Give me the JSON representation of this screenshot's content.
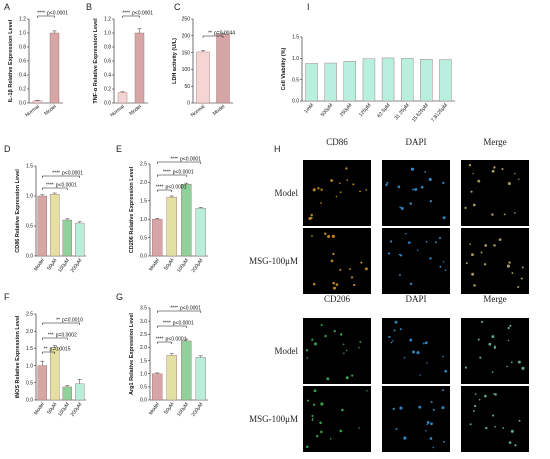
{
  "colors": {
    "pink": "#f5d5d4",
    "pinkStroke": "#c98b89",
    "rose": "#d6a5a6",
    "khaki": "#e2e1a3",
    "green": "#8fd19a",
    "mint": "#b9eedb",
    "viability": "#b9efde"
  },
  "chart_data": [
    {
      "id": "A",
      "type": "bar",
      "categories": [
        "Normal",
        "Model"
      ],
      "values": [
        0.03,
        1.0
      ],
      "errors": [
        0.01,
        0.03
      ],
      "ylim": [
        0,
        1.2
      ],
      "yticks": [
        "0.0",
        "0.2",
        "0.4",
        "0.6",
        "0.8",
        "1.0",
        "1.2"
      ],
      "ylabel": "IL-1β Relative Expression Level",
      "sig": [
        {
          "stars": "****",
          "p": "p<0.0001"
        }
      ]
    },
    {
      "id": "B",
      "type": "bar",
      "categories": [
        "Normal",
        "Model"
      ],
      "values": [
        0.15,
        1.0
      ],
      "errors": [
        0.01,
        0.06
      ],
      "ylim": [
        0,
        1.2
      ],
      "yticks": [
        "0.0",
        "0.2",
        "0.4",
        "0.6",
        "0.8",
        "1.0",
        "1.2"
      ],
      "ylabel": "TNF-α Relative Expression Level",
      "sig": [
        {
          "stars": "****",
          "p": "p<0.0001"
        }
      ]
    },
    {
      "id": "C",
      "type": "bar",
      "categories": [
        "Normal",
        "Model"
      ],
      "values": [
        152,
        205
      ],
      "errors": [
        4,
        3
      ],
      "ylim": [
        0,
        250
      ],
      "yticks": [
        "0",
        "50",
        "100",
        "150",
        "200",
        "250"
      ],
      "ylabel": "LDH activity (U/L)",
      "sig": [
        {
          "stars": "**",
          "p": "p=0.0044"
        }
      ]
    },
    {
      "id": "I",
      "type": "bar",
      "categories": [
        "1mM",
        "500μM",
        "250μM",
        "125μM",
        "62.5μM",
        "31.25μM",
        "15.625μM",
        "7.8125μM"
      ],
      "values": [
        0.88,
        0.89,
        0.93,
        0.99,
        1.01,
        1.0,
        0.98,
        0.97
      ],
      "ylim": [
        0,
        1.5
      ],
      "yticks": [
        "0.0",
        "0.5",
        "1.0",
        "1.5"
      ],
      "ylabel": "Cell Viability (%)"
    },
    {
      "id": "D",
      "type": "bar",
      "categories": [
        "Model",
        "50μM",
        "100μM",
        "200μM"
      ],
      "values": [
        1.0,
        1.03,
        0.6,
        0.55
      ],
      "errors": [
        0.02,
        0.02,
        0.02,
        0.02
      ],
      "ylim": [
        0,
        1.5
      ],
      "yticks": [
        "0.0",
        "0.5",
        "1.0",
        "1.5"
      ],
      "ylabel": "CD86 Relative Expression Level",
      "sig": [
        {
          "stars": "****",
          "p": "p<0.0001"
        },
        {
          "stars": "****",
          "p": "p<0.0001"
        }
      ]
    },
    {
      "id": "E",
      "type": "bar",
      "categories": [
        "Model",
        "50μM",
        "100μM",
        "200μM"
      ],
      "values": [
        1.0,
        1.6,
        1.95,
        1.3
      ],
      "errors": [
        0.02,
        0.03,
        0.03,
        0.02
      ],
      "ylim": [
        0,
        2.5
      ],
      "yticks": [
        "0.0",
        "0.5",
        "1.0",
        "1.5",
        "2.0",
        "2.5"
      ],
      "ylabel": "CD206 Relative Expression Level",
      "sig": [
        {
          "stars": "****",
          "p": "p<0.0001"
        },
        {
          "stars": "****",
          "p": "p<0.0001"
        },
        {
          "stars": "****",
          "p": "p<0.0001"
        }
      ]
    },
    {
      "id": "F",
      "type": "bar",
      "categories": [
        "Model",
        "50μM",
        "100μM",
        "200μM"
      ],
      "values": [
        1.0,
        1.52,
        0.38,
        0.47
      ],
      "errors": [
        0.13,
        0.06,
        0.04,
        0.13
      ],
      "ylim": [
        0,
        2.5
      ],
      "yticks": [
        "0.0",
        "0.5",
        "1.0",
        "1.5",
        "2.0",
        "2.5"
      ],
      "ylabel": "iNOS Relative Expression Level",
      "sig": [
        {
          "stars": "**",
          "p": "p=0.0015"
        },
        {
          "stars": "***",
          "p": "p=0.0002"
        },
        {
          "stars": "**",
          "p": "p=0.0010"
        }
      ]
    },
    {
      "id": "G",
      "type": "bar",
      "categories": [
        "Model",
        "50μM",
        "100μM",
        "200μM"
      ],
      "values": [
        1.0,
        1.7,
        2.25,
        1.62
      ],
      "errors": [
        0.03,
        0.06,
        0.07,
        0.06
      ],
      "ylim": [
        0,
        3.5
      ],
      "yticks": [
        "0.0",
        "0.5",
        "1.0",
        "1.5",
        "2.0",
        "2.5",
        "3.0",
        "3.5"
      ],
      "ylabel": "Arg1 Relative Expression Level",
      "sig": [
        {
          "stars": "****",
          "p": "p<0.0001"
        },
        {
          "stars": "****",
          "p": "p<0.0001"
        },
        {
          "stars": "****",
          "p": "p<0.0001"
        }
      ]
    }
  ],
  "panel_h": {
    "label": "H",
    "top_columns": [
      "CD86",
      "DAPI",
      "Merge"
    ],
    "bottom_columns": [
      "CD206",
      "DAPI",
      "Merge"
    ],
    "rows": [
      "Model",
      "MSG-100μM"
    ]
  }
}
